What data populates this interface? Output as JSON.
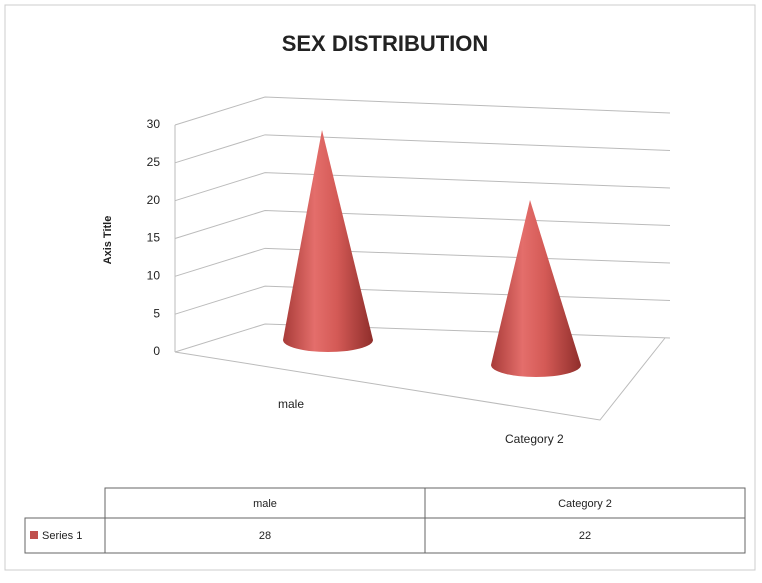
{
  "chart_data": {
    "type": "cone3d",
    "title": "SEX DISTRIBUTION",
    "y_label": "Axis Title",
    "categories": [
      "male",
      "Category 2"
    ],
    "series": [
      {
        "name": "Series 1",
        "color": "#c0504d",
        "values": [
          28,
          22
        ]
      }
    ],
    "ylim": [
      0,
      30
    ],
    "yticks": [
      0,
      5,
      10,
      15,
      20,
      25,
      30
    ],
    "grid": true,
    "data_table": true
  }
}
